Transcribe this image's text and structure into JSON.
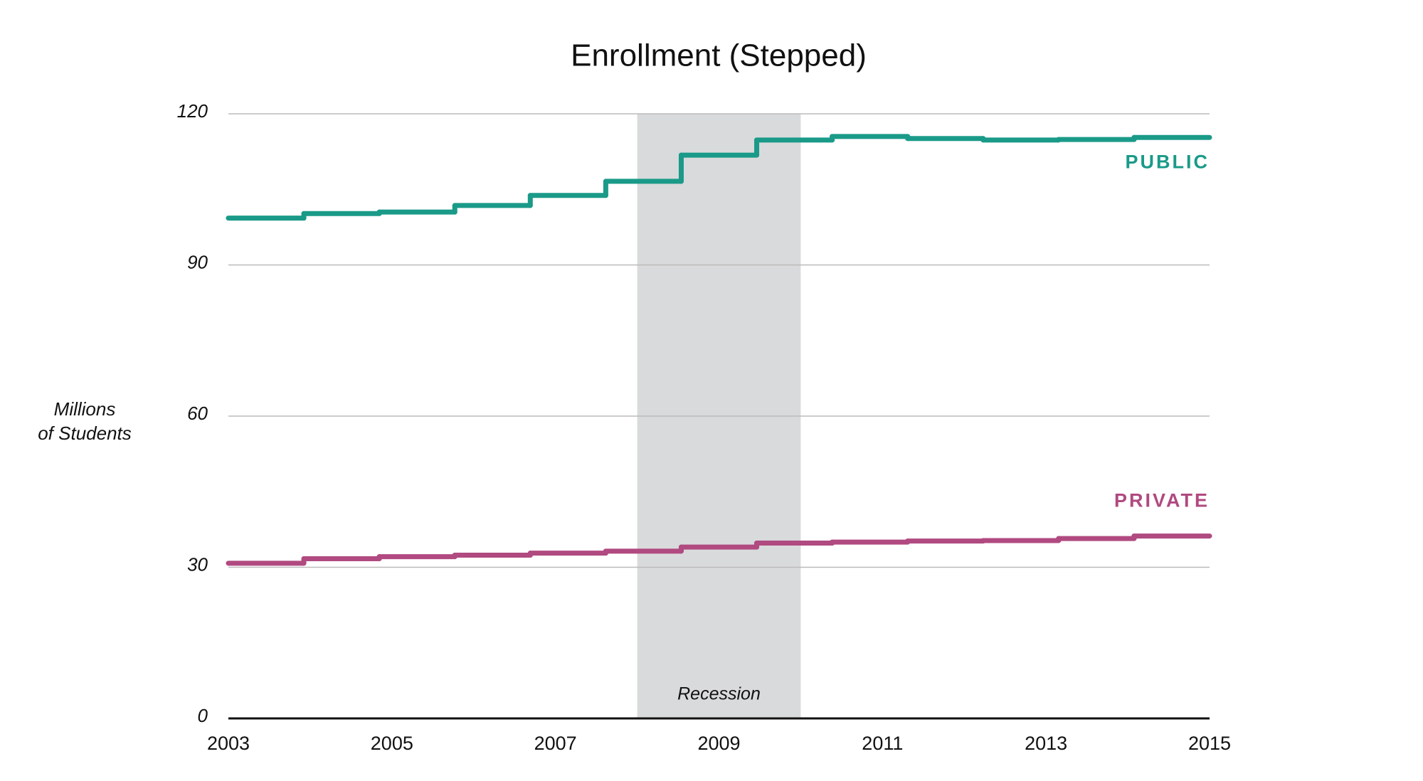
{
  "chart_data": {
    "type": "step",
    "title": "Enrollment (Stepped)",
    "y_label": [
      "Millions",
      "of Students"
    ],
    "xlim": [
      2003,
      2015
    ],
    "xticks": [
      2003,
      2005,
      2007,
      2009,
      2011,
      2013,
      2015
    ],
    "ylim": [
      0,
      120
    ],
    "yticks": [
      0,
      30,
      60,
      90,
      120
    ],
    "grid": true,
    "shaded_region": {
      "label": "Recession",
      "x": [
        2008,
        2010
      ],
      "color": "#d9dadc"
    },
    "series": [
      {
        "name": "PUBLIC",
        "color": "#1a9a88",
        "values": [
          99.3,
          100.2,
          100.5,
          101.8,
          103.8,
          106.6,
          111.8,
          114.8,
          115.5,
          115.1,
          114.8,
          114.9,
          115.3
        ]
      },
      {
        "name": "PRIVATE",
        "color": "#b04a80",
        "values": [
          30.8,
          31.7,
          32.1,
          32.4,
          32.8,
          33.2,
          34.0,
          34.8,
          35.0,
          35.2,
          35.3,
          35.7,
          36.2
        ]
      }
    ]
  }
}
